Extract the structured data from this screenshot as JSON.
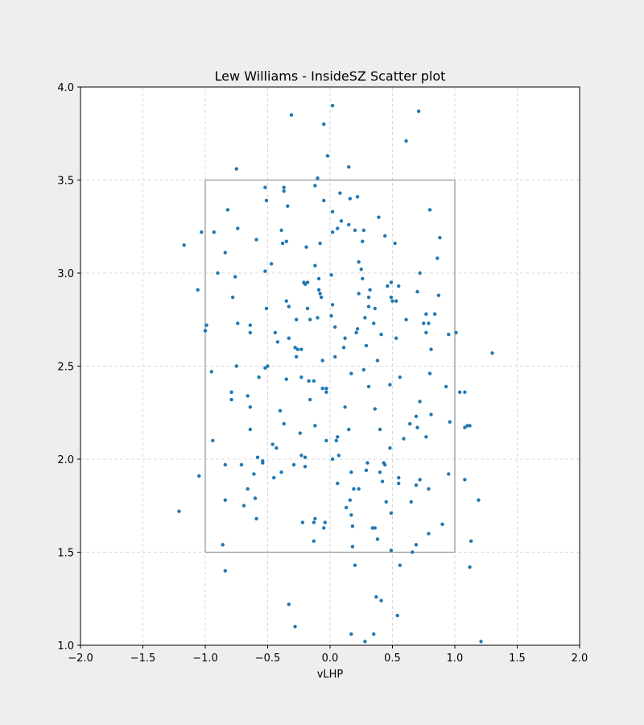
{
  "chart_data": {
    "type": "scatter",
    "title": "Lew Williams - InsideSZ Scatter plot",
    "xlabel": "vLHP",
    "ylabel": "",
    "xlim": [
      -2.0,
      2.0
    ],
    "ylim": [
      1.0,
      4.0
    ],
    "x_ticks": [
      "−2.0",
      "−1.5",
      "−1.0",
      "−0.5",
      "0.0",
      "0.5",
      "1.0",
      "1.5",
      "2.0"
    ],
    "y_ticks": [
      "1.0",
      "1.5",
      "2.0",
      "2.5",
      "3.0",
      "3.5",
      "4.0"
    ],
    "grid": true,
    "strike_zone": {
      "x": [
        -1.0,
        1.0
      ],
      "y": [
        1.5,
        3.5
      ]
    },
    "colors": {
      "points": "#1f77b4",
      "zone": "#999999",
      "grid": "#d0d0d0",
      "background": "#eeeeee",
      "plot_background": "#ffffff"
    },
    "points": [
      [
        -0.31,
        3.85
      ],
      [
        0.02,
        3.9
      ],
      [
        0.71,
        3.87
      ],
      [
        -0.05,
        3.8
      ],
      [
        0.61,
        3.71
      ],
      [
        -0.75,
        3.56
      ],
      [
        0.15,
        3.57
      ],
      [
        -0.02,
        3.63
      ],
      [
        -0.1,
        3.51
      ],
      [
        -0.52,
        3.46
      ],
      [
        -0.37,
        3.46
      ],
      [
        -0.37,
        3.44
      ],
      [
        -0.12,
        3.47
      ],
      [
        0.08,
        3.43
      ],
      [
        -0.05,
        3.39
      ],
      [
        0.16,
        3.4
      ],
      [
        0.22,
        3.41
      ],
      [
        -0.51,
        3.39
      ],
      [
        -0.34,
        3.36
      ],
      [
        0.02,
        3.33
      ],
      [
        0.39,
        3.3
      ],
      [
        0.8,
        3.34
      ],
      [
        -0.82,
        3.34
      ],
      [
        -1.03,
        3.22
      ],
      [
        -0.93,
        3.22
      ],
      [
        -0.74,
        3.24
      ],
      [
        -0.39,
        3.23
      ],
      [
        0.06,
        3.24
      ],
      [
        0.15,
        3.26
      ],
      [
        0.09,
        3.28
      ],
      [
        0.27,
        3.23
      ],
      [
        0.2,
        3.23
      ],
      [
        0.02,
        3.22
      ],
      [
        0.44,
        3.2
      ],
      [
        -1.17,
        3.15
      ],
      [
        -0.59,
        3.18
      ],
      [
        -0.38,
        3.16
      ],
      [
        -0.35,
        3.17
      ],
      [
        -0.08,
        3.16
      ],
      [
        0.26,
        3.17
      ],
      [
        0.52,
        3.16
      ],
      [
        0.88,
        3.19
      ],
      [
        -0.84,
        3.11
      ],
      [
        -0.19,
        3.14
      ],
      [
        0.23,
        3.06
      ],
      [
        0.86,
        3.08
      ],
      [
        -0.9,
        3.0
      ],
      [
        -0.52,
        3.01
      ],
      [
        -0.47,
        3.05
      ],
      [
        -0.12,
        3.04
      ],
      [
        0.25,
        3.02
      ],
      [
        0.72,
        3.0
      ],
      [
        -0.76,
        2.98
      ],
      [
        -0.09,
        2.97
      ],
      [
        0.01,
        2.99
      ],
      [
        0.26,
        2.97
      ],
      [
        -1.06,
        2.91
      ],
      [
        -0.21,
        2.95
      ],
      [
        -0.2,
        2.94
      ],
      [
        -0.18,
        2.95
      ],
      [
        -0.09,
        2.91
      ],
      [
        -0.08,
        2.89
      ],
      [
        0.32,
        2.91
      ],
      [
        0.46,
        2.93
      ],
      [
        0.49,
        2.95
      ],
      [
        0.55,
        2.93
      ],
      [
        0.7,
        2.9
      ],
      [
        -0.78,
        2.87
      ],
      [
        -0.07,
        2.87
      ],
      [
        0.23,
        2.89
      ],
      [
        0.31,
        2.87
      ],
      [
        0.49,
        2.87
      ],
      [
        0.5,
        2.85
      ],
      [
        0.53,
        2.85
      ],
      [
        0.87,
        2.88
      ],
      [
        -0.35,
        2.85
      ],
      [
        -0.33,
        2.82
      ],
      [
        -0.51,
        2.81
      ],
      [
        -0.18,
        2.81
      ],
      [
        0.02,
        2.83
      ],
      [
        0.31,
        2.82
      ],
      [
        0.36,
        2.81
      ],
      [
        0.01,
        2.77
      ],
      [
        0.28,
        2.76
      ],
      [
        0.61,
        2.75
      ],
      [
        0.77,
        2.78
      ],
      [
        0.84,
        2.78
      ],
      [
        -0.74,
        2.73
      ],
      [
        -0.64,
        2.72
      ],
      [
        -0.27,
        2.75
      ],
      [
        -0.16,
        2.75
      ],
      [
        -0.1,
        2.76
      ],
      [
        0.22,
        2.7
      ],
      [
        0.35,
        2.73
      ],
      [
        0.75,
        2.73
      ],
      [
        0.79,
        2.73
      ],
      [
        -0.99,
        2.72
      ],
      [
        -0.64,
        2.68
      ],
      [
        -0.44,
        2.68
      ],
      [
        0.04,
        2.71
      ],
      [
        0.21,
        2.68
      ],
      [
        0.41,
        2.67
      ],
      [
        0.77,
        2.68
      ],
      [
        0.95,
        2.67
      ],
      [
        1.01,
        2.68
      ],
      [
        -1.0,
        2.69
      ],
      [
        -0.42,
        2.63
      ],
      [
        -0.33,
        2.65
      ],
      [
        0.12,
        2.65
      ],
      [
        0.29,
        2.61
      ],
      [
        0.53,
        2.65
      ],
      [
        -0.28,
        2.6
      ],
      [
        -0.26,
        2.59
      ],
      [
        -0.23,
        2.59
      ],
      [
        0.11,
        2.6
      ],
      [
        0.81,
        2.59
      ],
      [
        1.3,
        2.57
      ],
      [
        -0.27,
        2.55
      ],
      [
        0.04,
        2.55
      ],
      [
        0.38,
        2.53
      ],
      [
        -0.06,
        2.53
      ],
      [
        -0.95,
        2.47
      ],
      [
        -0.75,
        2.5
      ],
      [
        -0.52,
        2.49
      ],
      [
        -0.5,
        2.5
      ],
      [
        0.27,
        2.48
      ],
      [
        0.17,
        2.46
      ],
      [
        0.8,
        2.46
      ],
      [
        -0.57,
        2.44
      ],
      [
        -0.35,
        2.43
      ],
      [
        -0.23,
        2.44
      ],
      [
        -0.17,
        2.42
      ],
      [
        -0.13,
        2.42
      ],
      [
        0.56,
        2.44
      ],
      [
        0.31,
        2.39
      ],
      [
        0.48,
        2.4
      ],
      [
        0.93,
        2.39
      ],
      [
        -0.79,
        2.36
      ],
      [
        -0.66,
        2.34
      ],
      [
        -0.06,
        2.38
      ],
      [
        -0.03,
        2.38
      ],
      [
        -0.03,
        2.36
      ],
      [
        1.04,
        2.36
      ],
      [
        1.08,
        2.36
      ],
      [
        -0.79,
        2.32
      ],
      [
        -0.16,
        2.32
      ],
      [
        0.72,
        2.31
      ],
      [
        -0.64,
        2.28
      ],
      [
        -0.4,
        2.26
      ],
      [
        0.12,
        2.28
      ],
      [
        0.36,
        2.27
      ],
      [
        0.69,
        2.23
      ],
      [
        0.81,
        2.24
      ],
      [
        -0.37,
        2.19
      ],
      [
        -0.12,
        2.18
      ],
      [
        0.64,
        2.19
      ],
      [
        0.96,
        2.2
      ],
      [
        1.08,
        2.17
      ],
      [
        1.1,
        2.18
      ],
      [
        1.12,
        2.18
      ],
      [
        -0.64,
        2.16
      ],
      [
        -0.24,
        2.14
      ],
      [
        0.15,
        2.16
      ],
      [
        0.4,
        2.16
      ],
      [
        0.7,
        2.17
      ],
      [
        -0.94,
        2.1
      ],
      [
        -0.03,
        2.1
      ],
      [
        0.05,
        2.1
      ],
      [
        0.06,
        2.12
      ],
      [
        0.59,
        2.11
      ],
      [
        0.77,
        2.12
      ],
      [
        -0.46,
        2.08
      ],
      [
        -0.43,
        2.06
      ],
      [
        0.48,
        2.06
      ],
      [
        -0.23,
        2.02
      ],
      [
        -0.2,
        2.01
      ],
      [
        0.02,
        2.0
      ],
      [
        0.07,
        2.02
      ],
      [
        -0.58,
        2.01
      ],
      [
        -0.54,
        1.99
      ],
      [
        -0.54,
        1.98
      ],
      [
        -0.84,
        1.97
      ],
      [
        -0.71,
        1.97
      ],
      [
        -0.29,
        1.97
      ],
      [
        -0.2,
        1.96
      ],
      [
        0.3,
        1.98
      ],
      [
        0.43,
        1.98
      ],
      [
        0.44,
        1.97
      ],
      [
        -0.61,
        1.92
      ],
      [
        -0.39,
        1.93
      ],
      [
        0.17,
        1.93
      ],
      [
        0.29,
        1.94
      ],
      [
        0.4,
        1.93
      ],
      [
        0.95,
        1.92
      ],
      [
        -1.05,
        1.91
      ],
      [
        -0.45,
        1.9
      ],
      [
        0.42,
        1.88
      ],
      [
        0.55,
        1.9
      ],
      [
        0.55,
        1.87
      ],
      [
        0.69,
        1.86
      ],
      [
        0.72,
        1.89
      ],
      [
        1.08,
        1.89
      ],
      [
        -0.66,
        1.84
      ],
      [
        0.06,
        1.87
      ],
      [
        0.19,
        1.84
      ],
      [
        0.23,
        1.84
      ],
      [
        0.79,
        1.84
      ],
      [
        -0.84,
        1.78
      ],
      [
        -0.6,
        1.79
      ],
      [
        0.16,
        1.78
      ],
      [
        0.45,
        1.77
      ],
      [
        0.65,
        1.77
      ],
      [
        1.19,
        1.78
      ],
      [
        -1.21,
        1.72
      ],
      [
        -0.69,
        1.75
      ],
      [
        0.13,
        1.74
      ],
      [
        0.17,
        1.7
      ],
      [
        0.49,
        1.71
      ],
      [
        -0.59,
        1.68
      ],
      [
        -0.13,
        1.66
      ],
      [
        -0.12,
        1.68
      ],
      [
        -0.22,
        1.66
      ],
      [
        -0.04,
        1.66
      ],
      [
        -0.05,
        1.63
      ],
      [
        0.18,
        1.64
      ],
      [
        0.34,
        1.63
      ],
      [
        0.36,
        1.63
      ],
      [
        0.79,
        1.6
      ],
      [
        0.9,
        1.65
      ],
      [
        -0.13,
        1.56
      ],
      [
        0.38,
        1.57
      ],
      [
        1.13,
        1.56
      ],
      [
        -0.86,
        1.54
      ],
      [
        0.18,
        1.53
      ],
      [
        0.69,
        1.54
      ],
      [
        0.49,
        1.51
      ],
      [
        0.66,
        1.5
      ],
      [
        0.2,
        1.43
      ],
      [
        0.56,
        1.43
      ],
      [
        1.12,
        1.42
      ],
      [
        -0.84,
        1.4
      ],
      [
        0.37,
        1.26
      ],
      [
        0.41,
        1.24
      ],
      [
        -0.33,
        1.22
      ],
      [
        0.54,
        1.16
      ],
      [
        -0.28,
        1.1
      ],
      [
        0.17,
        1.06
      ],
      [
        0.35,
        1.06
      ],
      [
        0.28,
        1.02
      ],
      [
        1.21,
        1.02
      ]
    ]
  }
}
